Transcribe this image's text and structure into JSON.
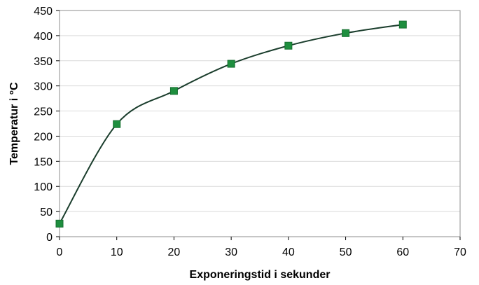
{
  "chart_data": {
    "type": "scatter",
    "title": "",
    "xlabel": "Exponeringstid i sekunder",
    "ylabel": "Temperatur i °C",
    "xlim": [
      0,
      70
    ],
    "ylim": [
      0,
      450
    ],
    "xticks": [
      0,
      10,
      20,
      30,
      40,
      50,
      60,
      70
    ],
    "yticks": [
      0,
      50,
      100,
      150,
      200,
      250,
      300,
      350,
      400,
      450
    ],
    "grid": true,
    "legend": "none",
    "smooth_line": true,
    "series": [
      {
        "x": [
          0,
          10,
          20,
          30,
          40,
          50,
          60
        ],
        "values": [
          26,
          224,
          290,
          344,
          380,
          405,
          422
        ],
        "marker": "square",
        "marker_color": "#1e8e3e",
        "line_color": "#1a3d2c"
      }
    ],
    "colors": {
      "grid": "#d9d9d9",
      "frame": "#8c8c8c"
    }
  }
}
